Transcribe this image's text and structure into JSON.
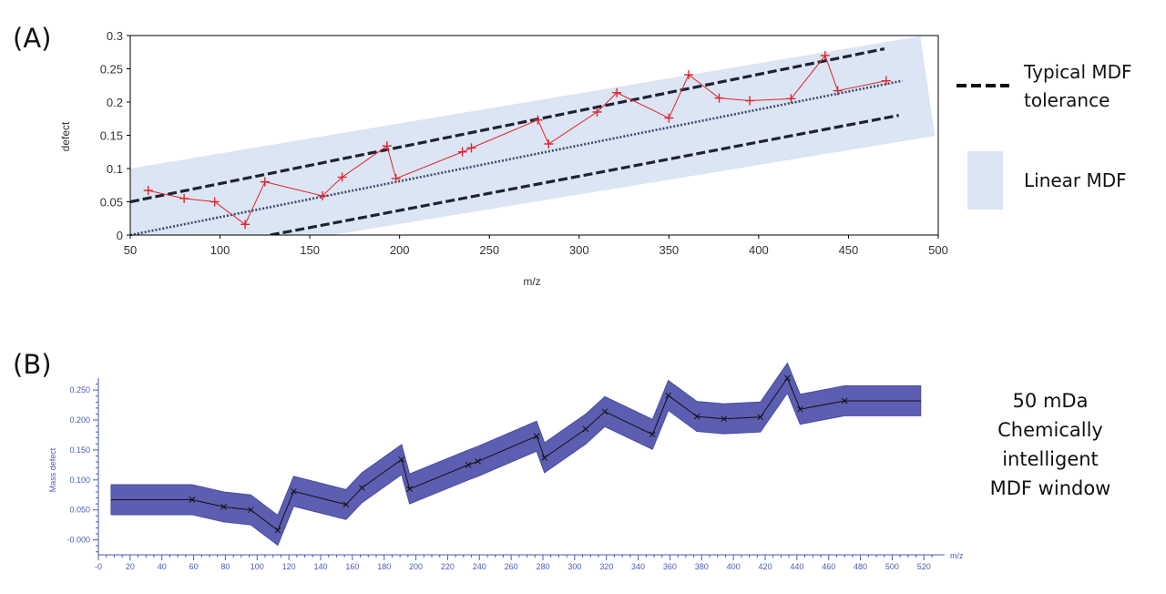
{
  "colors": {
    "band_fill": "#dbe5f3",
    "typical_line": "#1e2233",
    "fit_line": "#3b4a6b",
    "data_red": "#e0242b",
    "window_fill": "#5b5eb1",
    "window_line": "#111111",
    "axis_blue": "#4a5ab8"
  },
  "chart_data": [
    {
      "id": "A",
      "panel_label": "(A)",
      "type": "line",
      "title": "",
      "xlabel": "m/z",
      "ylabel": "defect",
      "xlim": [
        50,
        500
      ],
      "ylim": [
        0,
        0.3
      ],
      "xticks": [
        50,
        100,
        150,
        200,
        250,
        300,
        350,
        400,
        450,
        500
      ],
      "xtick_labels": [
        "50",
        "100",
        "150",
        "200",
        "250",
        "300",
        "350",
        "400",
        "450",
        "500"
      ],
      "yticks": [
        0,
        0.05,
        0.1,
        0.15,
        0.2,
        0.25,
        0.3
      ],
      "ytick_labels": [
        "0",
        "0.05",
        "0.1",
        "0.15",
        "0.2",
        "0.25",
        "0.3"
      ],
      "series": [
        {
          "name": "data",
          "x": [
            60,
            80,
            97,
            114,
            125,
            157,
            168,
            193,
            198,
            235,
            240,
            277,
            283,
            310,
            321,
            350,
            361,
            378,
            395,
            418,
            437,
            444,
            471
          ],
          "y": [
            0.067,
            0.055,
            0.05,
            0.016,
            0.08,
            0.059,
            0.087,
            0.134,
            0.085,
            0.125,
            0.131,
            0.173,
            0.137,
            0.185,
            0.214,
            0.176,
            0.241,
            0.206,
            0.202,
            0.205,
            0.27,
            0.217,
            0.232
          ]
        }
      ],
      "linear_mdf_band": {
        "x": [
          50,
          490
        ],
        "lower": [
          -0.05,
          0.149
        ],
        "upper": [
          0.1,
          0.299
        ]
      },
      "typical_tolerance_lines": [
        {
          "x": [
            50,
            470
          ],
          "y": [
            0.05,
            0.28
          ]
        },
        {
          "x": [
            128,
            478
          ],
          "y": [
            0,
            0.18
          ]
        }
      ],
      "center_fit_line": {
        "x": [
          50,
          480
        ],
        "y": [
          0.0,
          0.232
        ]
      },
      "legend": [
        {
          "key": "typical",
          "label_line1": "Typical MDF",
          "label_line2": "tolerance"
        },
        {
          "key": "linear",
          "label": "Linear MDF"
        }
      ]
    },
    {
      "id": "B",
      "panel_label": "(B)",
      "type": "line",
      "title": "",
      "xlabel": "m/z",
      "ylabel": "Mass defect",
      "xlim": [
        0,
        525
      ],
      "ylim": [
        -0.025,
        0.27
      ],
      "xticks": [
        0,
        20,
        40,
        60,
        80,
        100,
        120,
        140,
        160,
        180,
        200,
        220,
        240,
        260,
        280,
        300,
        320,
        340,
        360,
        380,
        400,
        420,
        440,
        460,
        480,
        500,
        520
      ],
      "xtick_labels": [
        "-0",
        "20",
        "40",
        "60",
        "80",
        "100",
        "120",
        "140",
        "160",
        "180",
        "200",
        "220",
        "240",
        "260",
        "280",
        "300",
        "320",
        "340",
        "360",
        "380",
        "400",
        "420",
        "440",
        "460",
        "480",
        "500",
        "520"
      ],
      "yticks": [
        0,
        0.05,
        0.1,
        0.15,
        0.2,
        0.25
      ],
      "ytick_labels": [
        "-0.000",
        "0.050",
        "0.100",
        "0.150",
        "0.200",
        "0.250"
      ],
      "window_half_width": 0.025,
      "series": [
        {
          "name": "mass defect",
          "x": [
            8,
            59,
            79,
            96,
            113,
            123,
            156,
            166,
            191,
            196,
            233,
            239,
            276,
            281,
            307,
            319,
            349,
            359,
            377,
            394,
            417,
            434,
            442,
            470,
            518
          ],
          "y": [
            0.067,
            0.067,
            0.055,
            0.05,
            0.016,
            0.081,
            0.059,
            0.087,
            0.134,
            0.085,
            0.125,
            0.131,
            0.173,
            0.137,
            0.185,
            0.214,
            0.176,
            0.241,
            0.206,
            0.202,
            0.205,
            0.27,
            0.218,
            0.232,
            0.232
          ]
        }
      ],
      "annotation": [
        "50 mDa",
        "Chemically",
        "intelligent",
        "MDF window"
      ]
    }
  ]
}
